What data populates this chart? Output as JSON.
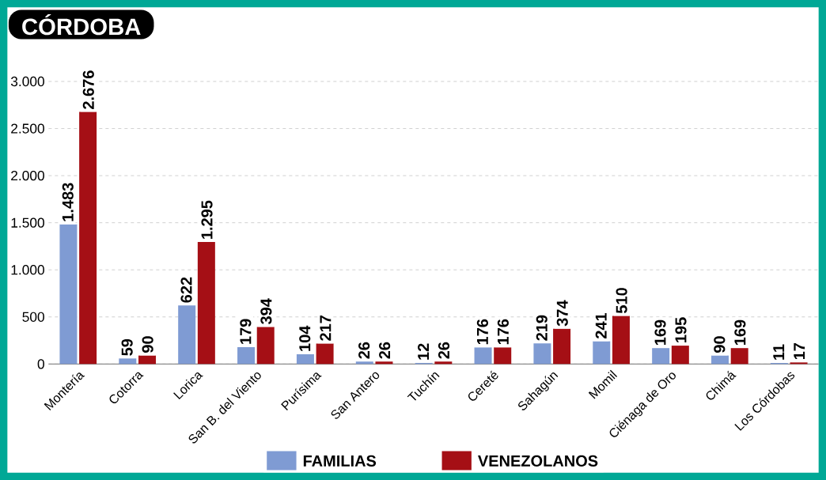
{
  "chart_data": {
    "type": "bar",
    "title": "CÓRDOBA",
    "categories": [
      "Montería",
      "Cotorra",
      "Lorica",
      "San B. del Viento",
      "Purísima",
      "San Antero",
      "Tuchín",
      "Cereté",
      "Sahagún",
      "Momil",
      "Ciénaga de Oro",
      "Chimá",
      "Los Córdobas"
    ],
    "series": [
      {
        "name": "FAMILIAS",
        "color": "#7f9bd3",
        "values": [
          1483,
          59,
          622,
          179,
          104,
          26,
          12,
          176,
          219,
          241,
          169,
          90,
          11
        ],
        "value_labels": [
          "1.483",
          "59",
          "622",
          "179",
          "104",
          "26",
          "12",
          "176",
          "219",
          "241",
          "169",
          "90",
          "11"
        ]
      },
      {
        "name": "VENEZOLANOS",
        "color": "#a50f15",
        "values": [
          2676,
          90,
          1295,
          394,
          217,
          26,
          26,
          176,
          374,
          510,
          195,
          169,
          17
        ],
        "value_labels": [
          "2.676",
          "90",
          "1.295",
          "394",
          "217",
          "26",
          "26",
          "176",
          "374",
          "510",
          "195",
          "169",
          "17"
        ]
      }
    ],
    "ylim": [
      0,
      3000
    ],
    "yticks": [
      0,
      {
        "value": 500,
        "label": "500"
      },
      {
        "value": 1000,
        "label": "1.000"
      },
      {
        "value": 1500,
        "label": "1.500"
      },
      {
        "value": 2000,
        "label": "2.000"
      },
      {
        "value": 2500,
        "label": "2.500"
      },
      {
        "value": 3000,
        "label": "3.000"
      }
    ],
    "grid": "y",
    "legend": "bottom"
  }
}
